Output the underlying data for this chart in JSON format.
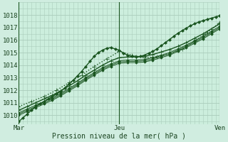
{
  "title": "",
  "xlabel": "Pression niveau de la mer( hPa )",
  "ylabel": "",
  "bg_color": "#d0ede0",
  "plot_bg_color": "#cceedd",
  "grid_color": "#aaccbb",
  "line_color": "#1a5520",
  "xlim": [
    0,
    48
  ],
  "ylim": [
    1009.3,
    1018.5
  ],
  "yticks": [
    1010,
    1011,
    1012,
    1013,
    1014,
    1015,
    1016,
    1017,
    1018
  ],
  "xtick_labels": [
    "Mar",
    "Jeu",
    "Ven"
  ],
  "xtick_positions": [
    0,
    24,
    48
  ],
  "figsize": [
    3.2,
    2.0
  ],
  "dpi": 100,
  "series": [
    {
      "x": [
        0,
        1,
        2,
        3,
        4,
        5,
        6,
        7,
        8,
        9,
        10,
        11,
        12,
        13,
        14,
        15,
        16,
        17,
        18,
        19,
        20,
        21,
        22,
        23,
        24,
        25,
        26,
        27,
        28,
        29,
        30,
        31,
        32,
        33,
        34,
        35,
        36,
        37,
        38,
        39,
        40,
        41,
        42,
        43,
        44,
        45,
        46,
        47,
        48
      ],
      "y": [
        1009.5,
        1009.8,
        1010.1,
        1010.4,
        1010.7,
        1010.9,
        1011.1,
        1011.3,
        1011.5,
        1011.7,
        1011.9,
        1012.2,
        1012.5,
        1012.8,
        1013.15,
        1013.5,
        1013.9,
        1014.3,
        1014.7,
        1015.0,
        1015.2,
        1015.35,
        1015.4,
        1015.3,
        1015.2,
        1014.95,
        1014.8,
        1014.7,
        1014.65,
        1014.7,
        1014.8,
        1014.95,
        1015.1,
        1015.3,
        1015.55,
        1015.8,
        1016.05,
        1016.3,
        1016.55,
        1016.75,
        1016.95,
        1017.15,
        1017.3,
        1017.45,
        1017.55,
        1017.65,
        1017.75,
        1017.85,
        1017.95
      ],
      "marker": "D",
      "linestyle": "-",
      "linewidth": 1.0,
      "markersize": 2.0
    },
    {
      "x": [
        0,
        2,
        4,
        6,
        8,
        10,
        12,
        14,
        16,
        18,
        20,
        22,
        24,
        26,
        28,
        30,
        32,
        34,
        36,
        38,
        40,
        42,
        44,
        46,
        48
      ],
      "y": [
        1010.4,
        1010.7,
        1011.0,
        1011.3,
        1011.6,
        1011.95,
        1012.35,
        1012.75,
        1013.2,
        1013.6,
        1014.0,
        1014.35,
        1014.6,
        1014.65,
        1014.65,
        1014.7,
        1014.85,
        1015.05,
        1015.25,
        1015.5,
        1015.8,
        1016.15,
        1016.5,
        1016.9,
        1017.3
      ],
      "marker": "+",
      "linestyle": "-",
      "linewidth": 1.0,
      "markersize": 4.0
    },
    {
      "x": [
        0,
        2,
        4,
        6,
        8,
        10,
        12,
        14,
        16,
        18,
        20,
        22,
        24,
        26,
        28,
        30,
        32,
        34,
        36,
        38,
        40,
        42,
        44,
        46,
        48
      ],
      "y": [
        1010.2,
        1010.5,
        1010.8,
        1011.1,
        1011.4,
        1011.75,
        1012.15,
        1012.55,
        1013.0,
        1013.4,
        1013.8,
        1014.1,
        1014.35,
        1014.4,
        1014.4,
        1014.45,
        1014.6,
        1014.8,
        1015.0,
        1015.3,
        1015.6,
        1015.95,
        1016.3,
        1016.7,
        1017.1
      ],
      "marker": "D",
      "linestyle": "-",
      "linewidth": 0.7,
      "markersize": 1.8
    },
    {
      "x": [
        0,
        2,
        4,
        6,
        8,
        10,
        12,
        14,
        16,
        18,
        20,
        22,
        24,
        26,
        28,
        30,
        32,
        34,
        36,
        38,
        40,
        42,
        44,
        46,
        48
      ],
      "y": [
        1010.1,
        1010.4,
        1010.7,
        1011.0,
        1011.3,
        1011.65,
        1012.05,
        1012.45,
        1012.9,
        1013.3,
        1013.7,
        1014.0,
        1014.25,
        1014.3,
        1014.3,
        1014.35,
        1014.5,
        1014.7,
        1014.9,
        1015.2,
        1015.5,
        1015.85,
        1016.2,
        1016.6,
        1017.0
      ],
      "marker": "D",
      "linestyle": "-",
      "linewidth": 0.7,
      "markersize": 1.8
    },
    {
      "x": [
        0,
        2,
        4,
        6,
        8,
        10,
        12,
        14,
        16,
        18,
        20,
        22,
        24,
        26,
        28,
        30,
        32,
        34,
        36,
        38,
        40,
        42,
        44,
        46,
        48
      ],
      "y": [
        1010.0,
        1010.3,
        1010.6,
        1010.9,
        1011.2,
        1011.55,
        1011.95,
        1012.35,
        1012.8,
        1013.2,
        1013.6,
        1013.9,
        1014.15,
        1014.2,
        1014.2,
        1014.25,
        1014.4,
        1014.6,
        1014.8,
        1015.1,
        1015.4,
        1015.75,
        1016.1,
        1016.5,
        1016.9
      ],
      "marker": "D",
      "linestyle": "-",
      "linewidth": 0.7,
      "markersize": 1.8
    },
    {
      "x": [
        0,
        3,
        6,
        9,
        12,
        15,
        18,
        21,
        24,
        27,
        30,
        33,
        36,
        39,
        42,
        45,
        48
      ],
      "y": [
        1010.7,
        1011.1,
        1011.5,
        1012.0,
        1012.6,
        1013.2,
        1013.9,
        1014.5,
        1015.1,
        1014.8,
        1014.6,
        1014.65,
        1014.9,
        1015.3,
        1015.9,
        1016.6,
        1017.4
      ],
      "marker": "+",
      "linestyle": ":",
      "linewidth": 1.0,
      "markersize": 4.0
    }
  ]
}
